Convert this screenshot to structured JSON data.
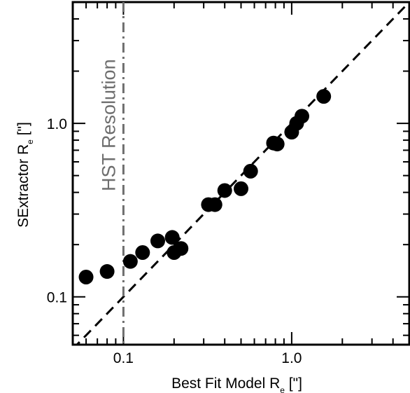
{
  "chart_data": {
    "type": "scatter",
    "xscale": "log",
    "yscale": "log",
    "xlim": [
      0.05,
      5.0
    ],
    "ylim": [
      0.053,
      5.0
    ],
    "xlabel": "Best Fit Model R",
    "xlabel_sub": "e",
    "xlabel_unit": " [\"]",
    "ylabel": "SExtractor R",
    "ylabel_sub": "e",
    "ylabel_unit": " [\"]",
    "xticks": [
      {
        "value": 0.1,
        "label": "0.1"
      },
      {
        "value": 1.0,
        "label": "1.0"
      }
    ],
    "yticks": [
      {
        "value": 0.1,
        "label": "0.1"
      },
      {
        "value": 1.0,
        "label": "1.0"
      }
    ],
    "points": [
      {
        "x": 0.06,
        "y": 0.13
      },
      {
        "x": 0.08,
        "y": 0.14
      },
      {
        "x": 0.11,
        "y": 0.16
      },
      {
        "x": 0.13,
        "y": 0.18
      },
      {
        "x": 0.16,
        "y": 0.21
      },
      {
        "x": 0.195,
        "y": 0.22
      },
      {
        "x": 0.2,
        "y": 0.18
      },
      {
        "x": 0.22,
        "y": 0.19
      },
      {
        "x": 0.32,
        "y": 0.34
      },
      {
        "x": 0.35,
        "y": 0.34
      },
      {
        "x": 0.4,
        "y": 0.41
      },
      {
        "x": 0.5,
        "y": 0.42
      },
      {
        "x": 0.57,
        "y": 0.53
      },
      {
        "x": 0.78,
        "y": 0.77
      },
      {
        "x": 0.82,
        "y": 0.76
      },
      {
        "x": 1.0,
        "y": 0.89
      },
      {
        "x": 1.07,
        "y": 1.0
      },
      {
        "x": 1.15,
        "y": 1.1
      },
      {
        "x": 1.55,
        "y": 1.43
      }
    ],
    "reference_line": {
      "type": "one-to-one",
      "style": "dashed",
      "color": "#000000"
    },
    "vertical_line": {
      "x": 0.1,
      "style": "dash-dot",
      "color": "#6e6e6e",
      "label": "HST Resolution"
    },
    "grid": false,
    "legend": "none"
  }
}
